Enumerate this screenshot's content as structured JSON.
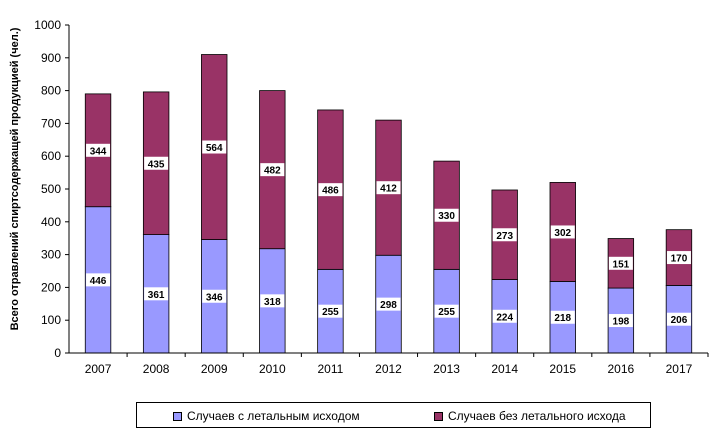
{
  "chart_data": {
    "type": "bar",
    "stacked": true,
    "categories": [
      "2007",
      "2008",
      "2009",
      "2010",
      "2011",
      "2012",
      "2013",
      "2014",
      "2015",
      "2016",
      "2017"
    ],
    "series": [
      {
        "name": "Случаев с летальным исходом",
        "values": [
          446,
          361,
          346,
          318,
          255,
          298,
          255,
          224,
          218,
          198,
          206
        ],
        "color": "#9999ff"
      },
      {
        "name": "Случаев без летального исхода",
        "values": [
          344,
          435,
          564,
          482,
          486,
          412,
          330,
          273,
          302,
          151,
          170
        ],
        "color": "#993366"
      }
    ],
    "ylabel": "Всего отравлений спиртсодержащей  продукцией  (чел.)",
    "xlabel": "",
    "ylim": [
      0,
      1000
    ],
    "yticks": [
      0,
      100,
      200,
      300,
      400,
      500,
      600,
      700,
      800,
      900,
      1000
    ],
    "grid": false,
    "legend_position": "bottom"
  }
}
